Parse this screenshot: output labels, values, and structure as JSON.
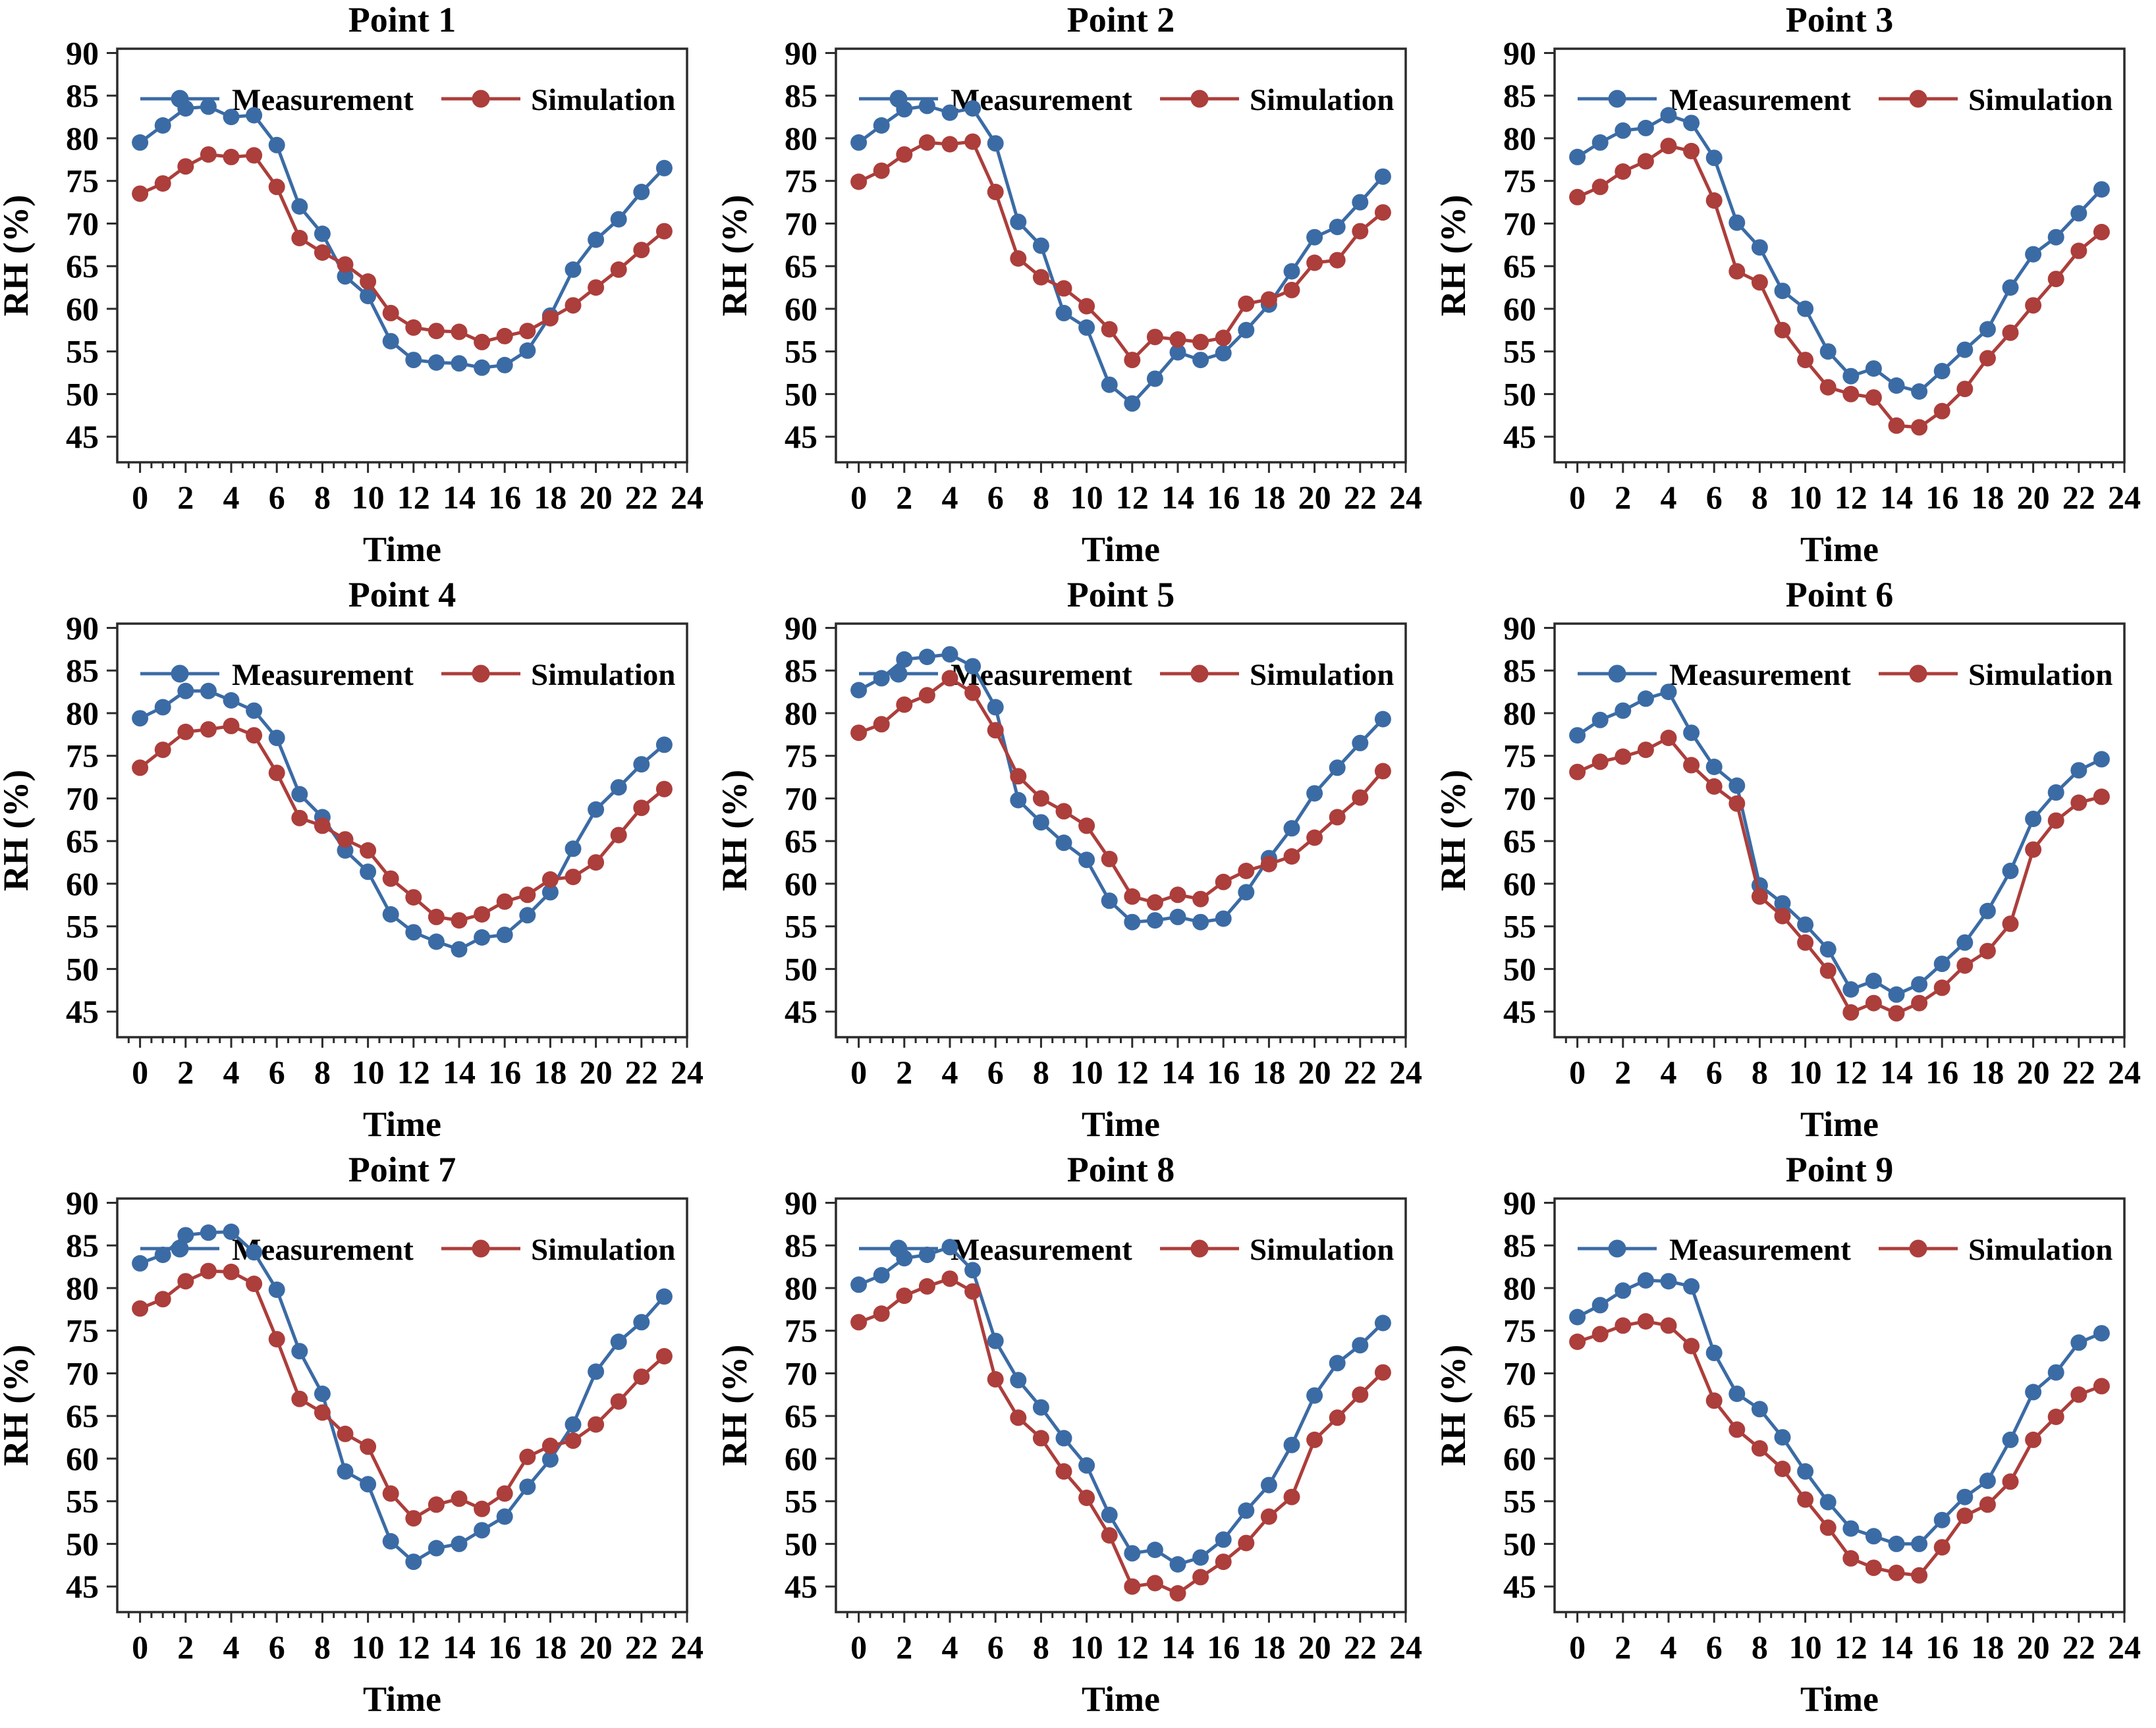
{
  "figure": {
    "ylabel": "RH (%)",
    "xlabel": "Time",
    "legend": [
      "Measurement",
      "Simulation"
    ],
    "colors": {
      "measurement": "#3B6BA5",
      "simulation": "#AC3E3B",
      "axis": "#2b2b2b",
      "text": "#000000",
      "background": "#ffffff"
    }
  },
  "chart_data": [
    {
      "type": "line",
      "title": "Point 1",
      "xlabel": "Time",
      "ylabel": "RH (%)",
      "xlim": [
        -1,
        24
      ],
      "ylim": [
        42,
        90.5
      ],
      "xticks": [
        0,
        2,
        4,
        6,
        8,
        10,
        12,
        14,
        16,
        18,
        20,
        22,
        24
      ],
      "yticks": [
        45,
        50,
        55,
        60,
        65,
        70,
        75,
        80,
        85,
        90
      ],
      "legend_position": "top-inside",
      "x": [
        0,
        1,
        2,
        3,
        4,
        5,
        6,
        7,
        8,
        9,
        10,
        11,
        12,
        13,
        14,
        15,
        16,
        17,
        18,
        19,
        20,
        21,
        22,
        23
      ],
      "series": [
        {
          "name": "Measurement",
          "color": "#3B6BA5",
          "values": [
            79.5,
            81.5,
            83.5,
            83.7,
            82.5,
            82.7,
            79.2,
            72.0,
            68.8,
            63.8,
            61.5,
            56.2,
            54.0,
            53.7,
            53.6,
            53.1,
            53.4,
            55.1,
            59.2,
            64.6,
            68.1,
            70.5,
            73.7,
            76.5
          ]
        },
        {
          "name": "Simulation",
          "color": "#AC3E3B",
          "values": [
            73.5,
            74.7,
            76.7,
            78.1,
            77.8,
            78.0,
            74.3,
            68.3,
            66.6,
            65.2,
            63.2,
            59.5,
            57.8,
            57.4,
            57.3,
            56.1,
            56.8,
            57.4,
            58.9,
            60.4,
            62.5,
            64.6,
            66.9,
            69.1
          ]
        }
      ]
    },
    {
      "type": "line",
      "title": "Point 2",
      "xlabel": "Time",
      "ylabel": "RH (%)",
      "xlim": [
        -1,
        24
      ],
      "ylim": [
        42,
        90.5
      ],
      "xticks": [
        0,
        2,
        4,
        6,
        8,
        10,
        12,
        14,
        16,
        18,
        20,
        22,
        24
      ],
      "yticks": [
        45,
        50,
        55,
        60,
        65,
        70,
        75,
        80,
        85,
        90
      ],
      "legend_position": "top-inside",
      "x": [
        0,
        1,
        2,
        3,
        4,
        5,
        6,
        7,
        8,
        9,
        10,
        11,
        12,
        13,
        14,
        15,
        16,
        17,
        18,
        19,
        20,
        21,
        22,
        23
      ],
      "series": [
        {
          "name": "Measurement",
          "color": "#3B6BA5",
          "values": [
            79.5,
            81.5,
            83.4,
            83.8,
            83.0,
            83.5,
            79.4,
            70.2,
            67.4,
            59.5,
            57.8,
            51.1,
            48.9,
            51.8,
            54.9,
            54.0,
            54.8,
            57.5,
            60.5,
            64.4,
            68.4,
            69.6,
            72.5,
            75.5
          ]
        },
        {
          "name": "Simulation",
          "color": "#AC3E3B",
          "values": [
            74.9,
            76.2,
            78.1,
            79.5,
            79.3,
            79.6,
            73.7,
            65.9,
            63.7,
            62.4,
            60.3,
            57.6,
            54.0,
            56.7,
            56.4,
            56.1,
            56.6,
            60.6,
            61.1,
            62.2,
            65.4,
            65.7,
            69.1,
            71.3
          ]
        }
      ]
    },
    {
      "type": "line",
      "title": "Point 3",
      "xlabel": "Time",
      "ylabel": "RH (%)",
      "xlim": [
        -1,
        24
      ],
      "ylim": [
        42,
        90.5
      ],
      "xticks": [
        0,
        2,
        4,
        6,
        8,
        10,
        12,
        14,
        16,
        18,
        20,
        22,
        24
      ],
      "yticks": [
        45,
        50,
        55,
        60,
        65,
        70,
        75,
        80,
        85,
        90
      ],
      "legend_position": "top-inside",
      "x": [
        0,
        1,
        2,
        3,
        4,
        5,
        6,
        7,
        8,
        9,
        10,
        11,
        12,
        13,
        14,
        15,
        16,
        17,
        18,
        19,
        20,
        21,
        22,
        23
      ],
      "series": [
        {
          "name": "Measurement",
          "color": "#3B6BA5",
          "values": [
            77.8,
            79.5,
            80.9,
            81.2,
            82.7,
            81.8,
            77.7,
            70.1,
            67.2,
            62.1,
            60.0,
            55.0,
            52.1,
            53.0,
            51.0,
            50.3,
            52.7,
            55.2,
            57.6,
            62.5,
            66.4,
            68.4,
            71.2,
            74.0
          ]
        },
        {
          "name": "Simulation",
          "color": "#AC3E3B",
          "values": [
            73.1,
            74.3,
            76.1,
            77.3,
            79.1,
            78.5,
            72.7,
            64.4,
            63.1,
            57.5,
            54.0,
            50.8,
            50.0,
            49.6,
            46.3,
            46.1,
            48.0,
            50.6,
            54.2,
            57.2,
            60.4,
            63.5,
            66.8,
            69.0
          ]
        }
      ]
    },
    {
      "type": "line",
      "title": "Point 4",
      "xlabel": "Time",
      "ylabel": "RH (%)",
      "xlim": [
        -1,
        24
      ],
      "ylim": [
        42,
        90.5
      ],
      "xticks": [
        0,
        2,
        4,
        6,
        8,
        10,
        12,
        14,
        16,
        18,
        20,
        22,
        24
      ],
      "yticks": [
        45,
        50,
        55,
        60,
        65,
        70,
        75,
        80,
        85,
        90
      ],
      "legend_position": "top-inside",
      "x": [
        0,
        1,
        2,
        3,
        4,
        5,
        6,
        7,
        8,
        9,
        10,
        11,
        12,
        13,
        14,
        15,
        16,
        17,
        18,
        19,
        20,
        21,
        22,
        23
      ],
      "series": [
        {
          "name": "Measurement",
          "color": "#3B6BA5",
          "values": [
            79.4,
            80.7,
            82.6,
            82.6,
            81.5,
            80.3,
            77.1,
            70.5,
            67.8,
            63.9,
            61.4,
            56.4,
            54.3,
            53.2,
            52.3,
            53.7,
            54.0,
            56.3,
            59.0,
            64.1,
            68.7,
            71.3,
            74.0,
            76.3
          ]
        },
        {
          "name": "Simulation",
          "color": "#AC3E3B",
          "values": [
            73.6,
            75.7,
            77.8,
            78.1,
            78.5,
            77.4,
            73.0,
            67.7,
            66.8,
            65.2,
            63.9,
            60.6,
            58.4,
            56.1,
            55.7,
            56.4,
            57.9,
            58.7,
            60.5,
            60.8,
            62.5,
            65.7,
            68.9,
            71.1
          ]
        }
      ]
    },
    {
      "type": "line",
      "title": "Point 5",
      "xlabel": "Time",
      "ylabel": "RH (%)",
      "xlim": [
        -1,
        24
      ],
      "ylim": [
        42,
        90.5
      ],
      "xticks": [
        0,
        2,
        4,
        6,
        8,
        10,
        12,
        14,
        16,
        18,
        20,
        22,
        24
      ],
      "yticks": [
        45,
        50,
        55,
        60,
        65,
        70,
        75,
        80,
        85,
        90
      ],
      "legend_position": "top-inside",
      "x": [
        0,
        1,
        2,
        3,
        4,
        5,
        6,
        7,
        8,
        9,
        10,
        11,
        12,
        13,
        14,
        15,
        16,
        17,
        18,
        19,
        20,
        21,
        22,
        23
      ],
      "series": [
        {
          "name": "Measurement",
          "color": "#3B6BA5",
          "values": [
            82.7,
            84.1,
            86.3,
            86.6,
            86.9,
            85.5,
            80.7,
            69.8,
            67.2,
            64.8,
            62.8,
            58.0,
            55.5,
            55.7,
            56.1,
            55.5,
            55.9,
            59.0,
            63.0,
            66.5,
            70.6,
            73.6,
            76.5,
            79.3
          ]
        },
        {
          "name": "Simulation",
          "color": "#AC3E3B",
          "values": [
            77.7,
            78.7,
            81.0,
            82.1,
            84.1,
            82.4,
            78.0,
            72.6,
            70.0,
            68.5,
            66.8,
            62.9,
            58.5,
            57.8,
            58.7,
            58.2,
            60.2,
            61.5,
            62.3,
            63.2,
            65.4,
            67.8,
            70.1,
            73.2
          ]
        }
      ]
    },
    {
      "type": "line",
      "title": "Point 6",
      "xlabel": "Time",
      "ylabel": "RH (%)",
      "xlim": [
        -1,
        24
      ],
      "ylim": [
        42,
        90.5
      ],
      "xticks": [
        0,
        2,
        4,
        6,
        8,
        10,
        12,
        14,
        16,
        18,
        20,
        22,
        24
      ],
      "yticks": [
        45,
        50,
        55,
        60,
        65,
        70,
        75,
        80,
        85,
        90
      ],
      "legend_position": "top-inside",
      "x": [
        0,
        1,
        2,
        3,
        4,
        5,
        6,
        7,
        8,
        9,
        10,
        11,
        12,
        13,
        14,
        15,
        16,
        17,
        18,
        19,
        20,
        21,
        22,
        23
      ],
      "series": [
        {
          "name": "Measurement",
          "color": "#3B6BA5",
          "values": [
            77.4,
            79.2,
            80.3,
            81.7,
            82.5,
            77.7,
            73.7,
            71.5,
            59.8,
            57.7,
            55.2,
            52.3,
            47.6,
            48.6,
            47.0,
            48.2,
            50.6,
            53.1,
            56.8,
            61.5,
            67.6,
            70.7,
            73.3,
            74.6
          ]
        },
        {
          "name": "Simulation",
          "color": "#AC3E3B",
          "values": [
            73.1,
            74.3,
            74.9,
            75.7,
            77.1,
            73.9,
            71.4,
            69.4,
            58.5,
            56.2,
            53.1,
            49.8,
            44.9,
            46.0,
            44.8,
            46.0,
            47.8,
            50.4,
            52.1,
            55.3,
            64.0,
            67.4,
            69.5,
            70.2
          ]
        }
      ]
    },
    {
      "type": "line",
      "title": "Point 7",
      "xlabel": "Time",
      "ylabel": "RH (%)",
      "xlim": [
        -1,
        24
      ],
      "ylim": [
        42,
        90.5
      ],
      "xticks": [
        0,
        2,
        4,
        6,
        8,
        10,
        12,
        14,
        16,
        18,
        20,
        22,
        24
      ],
      "yticks": [
        45,
        50,
        55,
        60,
        65,
        70,
        75,
        80,
        85,
        90
      ],
      "legend_position": "top-inside",
      "x": [
        0,
        1,
        2,
        3,
        4,
        5,
        6,
        7,
        8,
        9,
        10,
        11,
        12,
        13,
        14,
        15,
        16,
        17,
        18,
        19,
        20,
        21,
        22,
        23
      ],
      "series": [
        {
          "name": "Measurement",
          "color": "#3B6BA5",
          "values": [
            82.9,
            83.9,
            86.2,
            86.5,
            86.6,
            84.2,
            79.8,
            72.6,
            67.6,
            58.5,
            57.0,
            50.3,
            47.9,
            49.5,
            50.0,
            51.6,
            53.2,
            56.7,
            59.9,
            64.0,
            70.2,
            73.7,
            76.0,
            79.0
          ]
        },
        {
          "name": "Simulation",
          "color": "#AC3E3B",
          "values": [
            77.6,
            78.7,
            80.8,
            82.0,
            81.9,
            80.5,
            74.0,
            67.0,
            65.4,
            62.9,
            61.4,
            55.9,
            53.0,
            54.6,
            55.3,
            54.1,
            55.9,
            60.2,
            61.5,
            62.1,
            64.0,
            66.7,
            69.6,
            72.0
          ]
        }
      ]
    },
    {
      "type": "line",
      "title": "Point 8",
      "xlabel": "Time",
      "ylabel": "RH (%)",
      "xlim": [
        -1,
        24
      ],
      "ylim": [
        42,
        90.5
      ],
      "xticks": [
        0,
        2,
        4,
        6,
        8,
        10,
        12,
        14,
        16,
        18,
        20,
        22,
        24
      ],
      "yticks": [
        45,
        50,
        55,
        60,
        65,
        70,
        75,
        80,
        85,
        90
      ],
      "legend_position": "top-inside",
      "x": [
        0,
        1,
        2,
        3,
        4,
        5,
        6,
        7,
        8,
        9,
        10,
        11,
        12,
        13,
        14,
        15,
        16,
        17,
        18,
        19,
        20,
        21,
        22,
        23
      ],
      "series": [
        {
          "name": "Measurement",
          "color": "#3B6BA5",
          "values": [
            80.4,
            81.5,
            83.5,
            83.9,
            84.8,
            82.1,
            73.8,
            69.2,
            66.0,
            62.4,
            59.2,
            53.4,
            48.9,
            49.3,
            47.6,
            48.4,
            50.5,
            53.9,
            56.9,
            61.6,
            67.4,
            71.2,
            73.3,
            75.9
          ]
        },
        {
          "name": "Simulation",
          "color": "#AC3E3B",
          "values": [
            76.0,
            77.0,
            79.1,
            80.2,
            81.1,
            79.6,
            69.3,
            64.8,
            62.4,
            58.5,
            55.4,
            51.0,
            45.0,
            45.4,
            44.2,
            46.1,
            47.9,
            50.1,
            53.2,
            55.5,
            62.2,
            64.8,
            67.5,
            70.1
          ]
        }
      ]
    },
    {
      "type": "line",
      "title": "Point 9",
      "xlabel": "Time",
      "ylabel": "RH (%)",
      "xlim": [
        -1,
        24
      ],
      "ylim": [
        42,
        90.5
      ],
      "xticks": [
        0,
        2,
        4,
        6,
        8,
        10,
        12,
        14,
        16,
        18,
        20,
        22,
        24
      ],
      "yticks": [
        45,
        50,
        55,
        60,
        65,
        70,
        75,
        80,
        85,
        90
      ],
      "legend_position": "top-inside",
      "x": [
        0,
        1,
        2,
        3,
        4,
        5,
        6,
        7,
        8,
        9,
        10,
        11,
        12,
        13,
        14,
        15,
        16,
        17,
        18,
        19,
        20,
        21,
        22,
        23
      ],
      "series": [
        {
          "name": "Measurement",
          "color": "#3B6BA5",
          "values": [
            76.6,
            78.0,
            79.7,
            80.9,
            80.8,
            80.2,
            72.4,
            67.6,
            65.8,
            62.5,
            58.5,
            54.9,
            51.8,
            50.9,
            50.0,
            50.0,
            52.8,
            55.5,
            57.4,
            62.2,
            67.8,
            70.1,
            73.6,
            74.7
          ]
        },
        {
          "name": "Simulation",
          "color": "#AC3E3B",
          "values": [
            73.7,
            74.6,
            75.6,
            76.1,
            75.6,
            73.2,
            66.8,
            63.4,
            61.2,
            58.8,
            55.2,
            51.9,
            48.3,
            47.2,
            46.6,
            46.3,
            49.6,
            53.3,
            54.6,
            57.3,
            62.2,
            64.9,
            67.5,
            68.5
          ]
        }
      ]
    }
  ]
}
